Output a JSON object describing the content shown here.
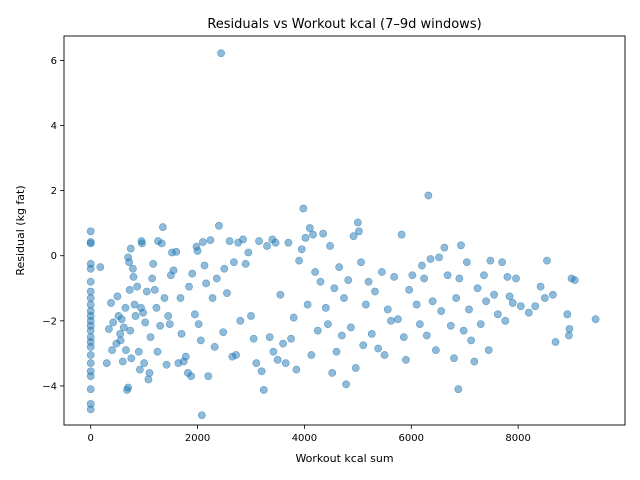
{
  "chart_data": {
    "type": "scatter",
    "title": "Residuals vs Workout kcal (7–9d windows)",
    "xlabel": "Workout kcal sum",
    "ylabel": "Residual (kg fat)",
    "xlim": [
      -500,
      10000
    ],
    "ylim": [
      -5.2,
      6.75
    ],
    "xticks": [
      0,
      2000,
      4000,
      6000,
      8000
    ],
    "yticks": [
      -4,
      -2,
      0,
      2,
      4,
      6
    ],
    "grid": false,
    "legend": "none",
    "marker_color": "#1f77b4",
    "marker_alpha": 0.5,
    "series": [
      {
        "points": [
          [
            0,
            0.75
          ],
          [
            0,
            0.42
          ],
          [
            0,
            0.38
          ],
          [
            0,
            -0.25
          ],
          [
            0,
            -0.4
          ],
          [
            0,
            -0.8
          ],
          [
            0,
            -1.1
          ],
          [
            0,
            -1.3
          ],
          [
            0,
            -1.5
          ],
          [
            0,
            -1.7
          ],
          [
            0,
            -1.85
          ],
          [
            0,
            -2.0
          ],
          [
            0,
            -2.15
          ],
          [
            0,
            -2.3
          ],
          [
            0,
            -2.5
          ],
          [
            0,
            -2.65
          ],
          [
            0,
            -2.8
          ],
          [
            0,
            -3.05
          ],
          [
            0,
            -3.3
          ],
          [
            0,
            -3.55
          ],
          [
            0,
            -3.7
          ],
          [
            0,
            -4.1
          ],
          [
            0,
            -4.55
          ],
          [
            0,
            -4.72
          ],
          [
            180,
            -0.35
          ],
          [
            300,
            -3.3
          ],
          [
            340,
            -2.25
          ],
          [
            380,
            -1.45
          ],
          [
            400,
            -2.9
          ],
          [
            420,
            -2.05
          ],
          [
            480,
            -2.7
          ],
          [
            500,
            -1.25
          ],
          [
            520,
            -1.85
          ],
          [
            550,
            -2.4
          ],
          [
            560,
            -2.6
          ],
          [
            580,
            -1.95
          ],
          [
            600,
            -3.25
          ],
          [
            620,
            -2.2
          ],
          [
            650,
            -1.6
          ],
          [
            660,
            -2.9
          ],
          [
            680,
            -4.12
          ],
          [
            700,
            -0.05
          ],
          [
            700,
            -4.05
          ],
          [
            720,
            -0.2
          ],
          [
            730,
            -1.05
          ],
          [
            740,
            -2.3
          ],
          [
            750,
            0.22
          ],
          [
            760,
            -3.15
          ],
          [
            790,
            -0.4
          ],
          [
            800,
            -0.65
          ],
          [
            820,
            -1.5
          ],
          [
            840,
            -1.85
          ],
          [
            870,
            -0.95
          ],
          [
            900,
            -2.95
          ],
          [
            920,
            -3.5
          ],
          [
            940,
            -1.6
          ],
          [
            950,
            0.45
          ],
          [
            960,
            0.38
          ],
          [
            980,
            -1.75
          ],
          [
            1000,
            -3.3
          ],
          [
            1020,
            -2.05
          ],
          [
            1050,
            -1.1
          ],
          [
            1080,
            -3.8
          ],
          [
            1100,
            -3.6
          ],
          [
            1120,
            -2.5
          ],
          [
            1150,
            -0.7
          ],
          [
            1170,
            -0.25
          ],
          [
            1200,
            -1.05
          ],
          [
            1230,
            -1.6
          ],
          [
            1250,
            -2.95
          ],
          [
            1260,
            0.45
          ],
          [
            1300,
            -2.15
          ],
          [
            1330,
            0.38
          ],
          [
            1350,
            0.88
          ],
          [
            1380,
            -1.3
          ],
          [
            1420,
            -3.35
          ],
          [
            1450,
            -1.85
          ],
          [
            1480,
            -2.1
          ],
          [
            1500,
            -0.6
          ],
          [
            1520,
            0.1
          ],
          [
            1550,
            -0.45
          ],
          [
            1600,
            0.12
          ],
          [
            1640,
            -3.3
          ],
          [
            1680,
            -1.3
          ],
          [
            1700,
            -2.4
          ],
          [
            1740,
            -3.25
          ],
          [
            1780,
            -3.1
          ],
          [
            1820,
            -3.6
          ],
          [
            1840,
            -0.95
          ],
          [
            1880,
            -3.7
          ],
          [
            1900,
            -0.55
          ],
          [
            1950,
            -1.8
          ],
          [
            1980,
            0.28
          ],
          [
            2000,
            0.15
          ],
          [
            2020,
            -2.1
          ],
          [
            2060,
            -2.6
          ],
          [
            2080,
            -4.9
          ],
          [
            2100,
            0.42
          ],
          [
            2130,
            -0.3
          ],
          [
            2160,
            -0.85
          ],
          [
            2200,
            -3.7
          ],
          [
            2240,
            0.48
          ],
          [
            2280,
            -1.3
          ],
          [
            2320,
            -2.8
          ],
          [
            2360,
            -0.7
          ],
          [
            2400,
            0.92
          ],
          [
            2440,
            6.22
          ],
          [
            2480,
            -2.35
          ],
          [
            2500,
            -0.4
          ],
          [
            2550,
            -1.15
          ],
          [
            2600,
            0.45
          ],
          [
            2650,
            -3.1
          ],
          [
            2680,
            -0.2
          ],
          [
            2720,
            -3.05
          ],
          [
            2760,
            0.4
          ],
          [
            2800,
            -2.0
          ],
          [
            2850,
            0.5
          ],
          [
            2900,
            -0.25
          ],
          [
            2950,
            0.1
          ],
          [
            3000,
            -1.85
          ],
          [
            3050,
            -2.55
          ],
          [
            3100,
            -3.3
          ],
          [
            3150,
            0.45
          ],
          [
            3200,
            -3.55
          ],
          [
            3240,
            -4.12
          ],
          [
            3300,
            0.3
          ],
          [
            3350,
            -2.5
          ],
          [
            3400,
            0.5
          ],
          [
            3420,
            -2.95
          ],
          [
            3460,
            0.4
          ],
          [
            3500,
            -3.2
          ],
          [
            3550,
            -1.2
          ],
          [
            3600,
            -2.7
          ],
          [
            3650,
            -3.3
          ],
          [
            3700,
            0.4
          ],
          [
            3750,
            -2.55
          ],
          [
            3800,
            -1.9
          ],
          [
            3850,
            -3.5
          ],
          [
            3900,
            -0.15
          ],
          [
            3950,
            0.2
          ],
          [
            3980,
            1.45
          ],
          [
            4020,
            0.55
          ],
          [
            4060,
            -1.5
          ],
          [
            4100,
            0.85
          ],
          [
            4130,
            -3.05
          ],
          [
            4160,
            0.65
          ],
          [
            4200,
            -0.5
          ],
          [
            4250,
            -2.3
          ],
          [
            4300,
            -0.8
          ],
          [
            4350,
            0.68
          ],
          [
            4400,
            -1.6
          ],
          [
            4440,
            -2.1
          ],
          [
            4480,
            0.3
          ],
          [
            4520,
            -3.6
          ],
          [
            4560,
            -1.0
          ],
          [
            4600,
            -2.95
          ],
          [
            4650,
            -0.35
          ],
          [
            4700,
            -2.45
          ],
          [
            4740,
            -1.3
          ],
          [
            4780,
            -3.95
          ],
          [
            4820,
            -0.75
          ],
          [
            4870,
            -2.2
          ],
          [
            4920,
            0.6
          ],
          [
            4960,
            -3.45
          ],
          [
            5000,
            1.02
          ],
          [
            5020,
            0.75
          ],
          [
            5060,
            -0.2
          ],
          [
            5100,
            -2.75
          ],
          [
            5150,
            -1.5
          ],
          [
            5200,
            -0.8
          ],
          [
            5260,
            -2.4
          ],
          [
            5320,
            -1.1
          ],
          [
            5380,
            -2.85
          ],
          [
            5450,
            -0.5
          ],
          [
            5500,
            -3.05
          ],
          [
            5560,
            -1.65
          ],
          [
            5620,
            -2.0
          ],
          [
            5680,
            -0.65
          ],
          [
            5750,
            -1.95
          ],
          [
            5820,
            0.65
          ],
          [
            5860,
            -2.5
          ],
          [
            5900,
            -3.2
          ],
          [
            5960,
            -1.05
          ],
          [
            6020,
            -0.6
          ],
          [
            6100,
            -1.5
          ],
          [
            6160,
            -2.1
          ],
          [
            6200,
            -0.3
          ],
          [
            6240,
            -0.7
          ],
          [
            6290,
            -2.45
          ],
          [
            6320,
            1.85
          ],
          [
            6360,
            -0.1
          ],
          [
            6400,
            -1.4
          ],
          [
            6460,
            -2.9
          ],
          [
            6520,
            -0.05
          ],
          [
            6560,
            -1.7
          ],
          [
            6620,
            0.25
          ],
          [
            6680,
            -0.6
          ],
          [
            6740,
            -2.15
          ],
          [
            6800,
            -3.15
          ],
          [
            6840,
            -1.3
          ],
          [
            6880,
            -4.1
          ],
          [
            6900,
            -0.7
          ],
          [
            6930,
            0.32
          ],
          [
            6980,
            -2.3
          ],
          [
            7040,
            -0.2
          ],
          [
            7080,
            -1.65
          ],
          [
            7120,
            -2.6
          ],
          [
            7180,
            -3.25
          ],
          [
            7240,
            -1.0
          ],
          [
            7300,
            -2.1
          ],
          [
            7360,
            -0.6
          ],
          [
            7400,
            -1.4
          ],
          [
            7450,
            -2.9
          ],
          [
            7480,
            -0.15
          ],
          [
            7550,
            -1.2
          ],
          [
            7620,
            -1.8
          ],
          [
            7700,
            -0.2
          ],
          [
            7760,
            -2.0
          ],
          [
            7800,
            -0.65
          ],
          [
            7840,
            -1.25
          ],
          [
            7900,
            -1.45
          ],
          [
            7960,
            -0.7
          ],
          [
            8050,
            -1.55
          ],
          [
            8200,
            -1.75
          ],
          [
            8320,
            -1.55
          ],
          [
            8420,
            -0.95
          ],
          [
            8500,
            -1.3
          ],
          [
            8540,
            -0.15
          ],
          [
            8650,
            -1.2
          ],
          [
            8700,
            -2.65
          ],
          [
            8920,
            -1.8
          ],
          [
            8950,
            -2.45
          ],
          [
            8960,
            -2.25
          ],
          [
            9000,
            -0.7
          ],
          [
            9060,
            -0.75
          ],
          [
            9450,
            -1.95
          ]
        ]
      }
    ]
  }
}
